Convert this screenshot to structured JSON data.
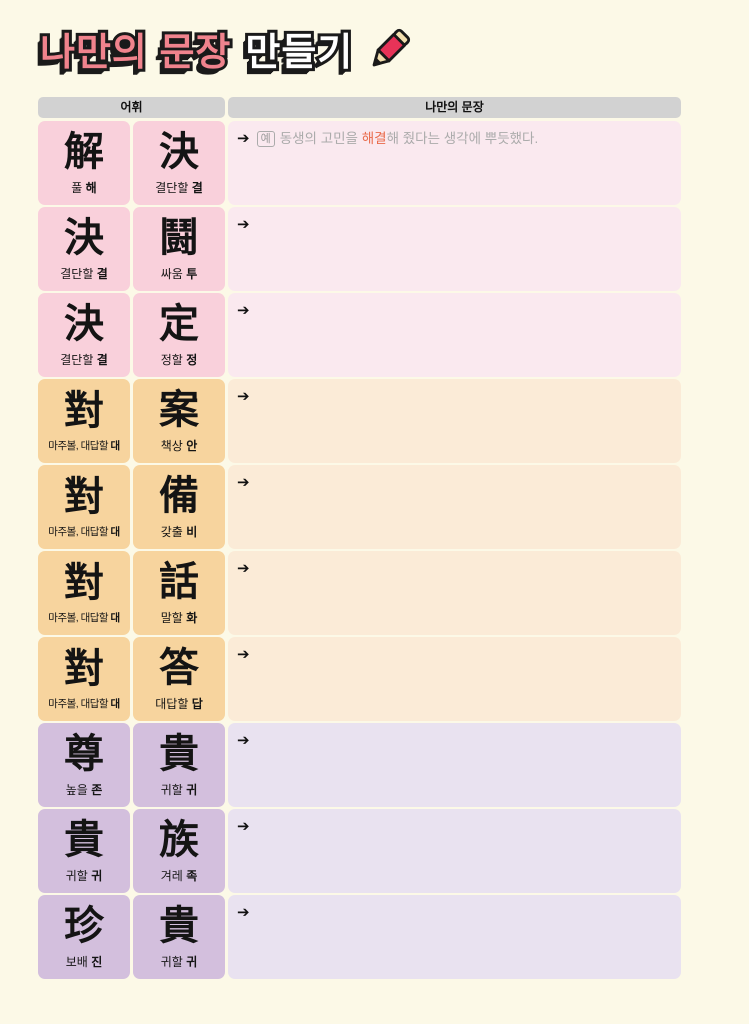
{
  "title": {
    "highlight": "나만의 문장",
    "rest": "만들기"
  },
  "icons": {
    "pencil": "pencil-icon",
    "arrow": "➔"
  },
  "colors": {
    "page_bg": "#FCF9E7",
    "header_bg": "#D2D2D2",
    "title_pink": "#F0838D",
    "title_white": "#FFFFFF",
    "outline_black": "#1A1A1A",
    "pencil_body": "#E73358",
    "pencil_wood": "#F2DFAE",
    "pink_cell": "#F9D0DB",
    "pink_area": "#FAE9EF",
    "orange_cell": "#F7D49E",
    "orange_area": "#FBEBD7",
    "purple_cell": "#D3BFDD",
    "purple_area": "#E9E2F0",
    "example_gray": "#ABABAB",
    "highlight_orange": "#E96B4B"
  },
  "table": {
    "header_vocab": "어휘",
    "header_sentence": "나만의 문장",
    "rows": [
      {
        "theme": "pink",
        "cards": [
          {
            "hanja": "解",
            "gloss": "풀",
            "sound": "해"
          },
          {
            "hanja": "決",
            "gloss": "결단할",
            "sound": "결"
          }
        ],
        "example": {
          "label": "예",
          "pre": "동생의 고민을 ",
          "highlight": "해결",
          "post": "해 줬다는 생각에 뿌듯했다."
        }
      },
      {
        "theme": "pink",
        "cards": [
          {
            "hanja": "決",
            "gloss": "결단할",
            "sound": "결"
          },
          {
            "hanja": "鬪",
            "gloss": "싸움",
            "sound": "투"
          }
        ]
      },
      {
        "theme": "pink",
        "cards": [
          {
            "hanja": "決",
            "gloss": "결단할",
            "sound": "결"
          },
          {
            "hanja": "定",
            "gloss": "정할",
            "sound": "정"
          }
        ]
      },
      {
        "theme": "orange",
        "cards": [
          {
            "hanja": "對",
            "gloss": "마주볼, 대답할",
            "sound": "대"
          },
          {
            "hanja": "案",
            "gloss": "책상",
            "sound": "안"
          }
        ]
      },
      {
        "theme": "orange",
        "cards": [
          {
            "hanja": "對",
            "gloss": "마주볼, 대답할",
            "sound": "대"
          },
          {
            "hanja": "備",
            "gloss": "갖출",
            "sound": "비"
          }
        ]
      },
      {
        "theme": "orange",
        "cards": [
          {
            "hanja": "對",
            "gloss": "마주볼, 대답할",
            "sound": "대"
          },
          {
            "hanja": "話",
            "gloss": "말할",
            "sound": "화"
          }
        ]
      },
      {
        "theme": "orange",
        "cards": [
          {
            "hanja": "對",
            "gloss": "마주볼, 대답할",
            "sound": "대"
          },
          {
            "hanja": "答",
            "gloss": "대답할",
            "sound": "답"
          }
        ]
      },
      {
        "theme": "purple",
        "cards": [
          {
            "hanja": "尊",
            "gloss": "높을",
            "sound": "존"
          },
          {
            "hanja": "貴",
            "gloss": "귀할",
            "sound": "귀"
          }
        ]
      },
      {
        "theme": "purple",
        "cards": [
          {
            "hanja": "貴",
            "gloss": "귀할",
            "sound": "귀"
          },
          {
            "hanja": "族",
            "gloss": "겨레",
            "sound": "족"
          }
        ]
      },
      {
        "theme": "purple",
        "cards": [
          {
            "hanja": "珍",
            "gloss": "보배",
            "sound": "진"
          },
          {
            "hanja": "貴",
            "gloss": "귀할",
            "sound": "귀"
          }
        ]
      }
    ]
  }
}
